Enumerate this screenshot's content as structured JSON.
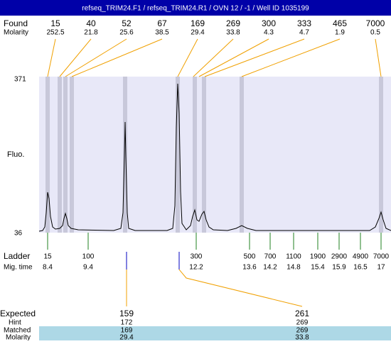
{
  "header": {
    "title": "refseq_TRIM24.F1 / refseq_TRIM24.R1 / OVN 12 / -1 / Well ID 1035199"
  },
  "found": {
    "label": "Found",
    "molarity_label": "Molarity",
    "peaks": [
      {
        "size": 15,
        "molarity": 252.5
      },
      {
        "size": 40,
        "molarity": 21.8
      },
      {
        "size": 52,
        "molarity": 25.6
      },
      {
        "size": 67,
        "molarity": 38.5
      },
      {
        "size": 169,
        "molarity": 29.4
      },
      {
        "size": 269,
        "molarity": 33.8
      },
      {
        "size": 300,
        "molarity": 4.3
      },
      {
        "size": 333,
        "molarity": 4.7
      },
      {
        "size": 465,
        "molarity": 1.9
      },
      {
        "size": 7000,
        "molarity": 0.5
      }
    ]
  },
  "plot": {
    "y_top": 371,
    "y_bottom": 36,
    "y_label": "Fluo."
  },
  "ladder": {
    "label": "Ladder",
    "mig_label": "Mig. time",
    "bands": [
      {
        "size": 15,
        "time": 8.4
      },
      {
        "size": 100,
        "time": 9.4
      },
      {
        "size": 300,
        "time": 12.2
      },
      {
        "size": 500,
        "time": 13.6
      },
      {
        "size": 700,
        "time": 14.2
      },
      {
        "size": 1100,
        "time": 14.8
      },
      {
        "size": 1900,
        "time": 15.4
      },
      {
        "size": 2900,
        "time": 15.9
      },
      {
        "size": 4900,
        "time": 16.5
      },
      {
        "size": 7000,
        "time": 17
      }
    ]
  },
  "expected": {
    "label": "Expected",
    "hint_label": "Hint",
    "matched_label": "Matched",
    "molarity_label": "Molarity",
    "columns": [
      {
        "expected": 159,
        "hint": 172,
        "matched": 169,
        "molarity": 29.4
      },
      {
        "expected": 261,
        "hint": 269,
        "matched": 269,
        "molarity": 33.8
      }
    ]
  }
}
